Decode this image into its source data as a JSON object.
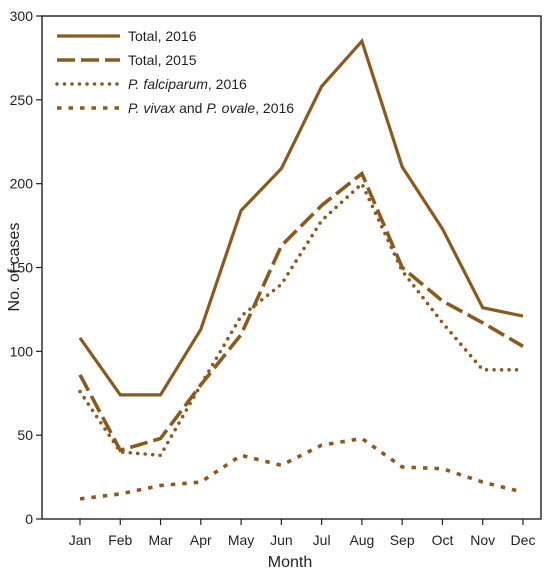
{
  "chart_data": {
    "type": "line",
    "title": "",
    "xlabel": "Month",
    "ylabel": "No. of cases",
    "categories": [
      "Jan",
      "Feb",
      "Mar",
      "Apr",
      "May",
      "Jun",
      "Jul",
      "Aug",
      "Sep",
      "Oct",
      "Nov",
      "Dec"
    ],
    "ylim": [
      0,
      300
    ],
    "yticks": [
      "0",
      "50",
      "100",
      "150",
      "200",
      "250",
      "300"
    ],
    "grid": false,
    "legend_position": "top-left",
    "color": "#8B5A1E",
    "series": [
      {
        "name": "Total, 2016",
        "style": "solid",
        "values": [
          108,
          74,
          74,
          113,
          184,
          209,
          258,
          285,
          210,
          173,
          126,
          121
        ]
      },
      {
        "name": "Total, 2015",
        "style": "long-dash",
        "values": [
          86,
          41,
          48,
          80,
          110,
          163,
          187,
          206,
          150,
          130,
          117,
          103
        ]
      },
      {
        "name": "P. falciparum, 2016",
        "style": "dotted",
        "values": [
          76,
          40,
          38,
          80,
          121,
          140,
          178,
          200,
          148,
          117,
          89,
          89
        ]
      },
      {
        "name": "P. vivax and P. ovale, 2016",
        "style": "short-dash",
        "values": [
          12,
          15,
          20,
          22,
          38,
          32,
          44,
          48,
          31,
          30,
          22,
          16
        ]
      }
    ],
    "legend": [
      {
        "parts": [
          {
            "text": "Total, 2016",
            "italic": false
          }
        ]
      },
      {
        "parts": [
          {
            "text": "Total, 2015",
            "italic": false
          }
        ]
      },
      {
        "parts": [
          {
            "text": "P. falciparum",
            "italic": true
          },
          {
            "text": ", 2016",
            "italic": false
          }
        ]
      },
      {
        "parts": [
          {
            "text": "P. vivax",
            "italic": true
          },
          {
            "text": " and ",
            "italic": false
          },
          {
            "text": "P. ovale",
            "italic": true
          },
          {
            "text": ", 2016",
            "italic": false
          }
        ]
      }
    ]
  }
}
